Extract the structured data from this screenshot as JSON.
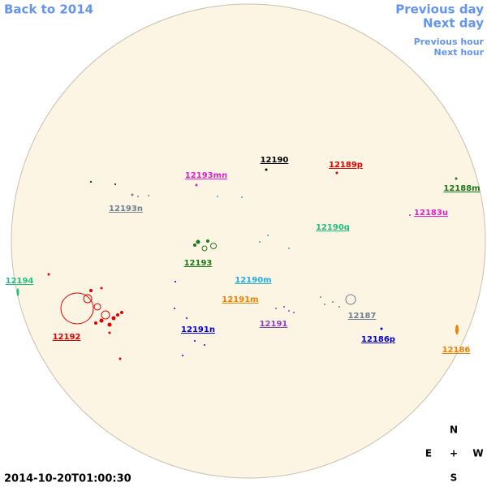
{
  "nav": {
    "back": "Back to 2014",
    "previous_day": "Previous day",
    "next_day": "Next day",
    "previous_hour": "Previous hour",
    "next_hour": "Next hour"
  },
  "timestamp": "2014-10-20T01:00:30",
  "compass": {
    "north": "N",
    "south": "S",
    "east": "E",
    "west": "W",
    "center": "+"
  },
  "regions": [
    {
      "label": "12190",
      "color": "#000000"
    },
    {
      "label": "12189p",
      "color": "#e00000"
    },
    {
      "label": "12193mn",
      "color": "#e020d0"
    },
    {
      "label": "12188m",
      "color": "#1a7a1a"
    },
    {
      "label": "12193n",
      "color": "#708090"
    },
    {
      "label": "12183u",
      "color": "#e020d0"
    },
    {
      "label": "12190q",
      "color": "#20c080"
    },
    {
      "label": "12193",
      "color": "#1a7a1a"
    },
    {
      "label": "12194",
      "color": "#20c080"
    },
    {
      "label": "12190m",
      "color": "#20b0e0"
    },
    {
      "label": "12191m",
      "color": "#f08000"
    },
    {
      "label": "12187",
      "color": "#708090"
    },
    {
      "label": "12191",
      "color": "#9040c0"
    },
    {
      "label": "12192",
      "color": "#e00000"
    },
    {
      "label": "12191n",
      "color": "#0000d0"
    },
    {
      "label": "12186p",
      "color": "#0000d0"
    },
    {
      "label": "12186",
      "color": "#f08000"
    }
  ]
}
